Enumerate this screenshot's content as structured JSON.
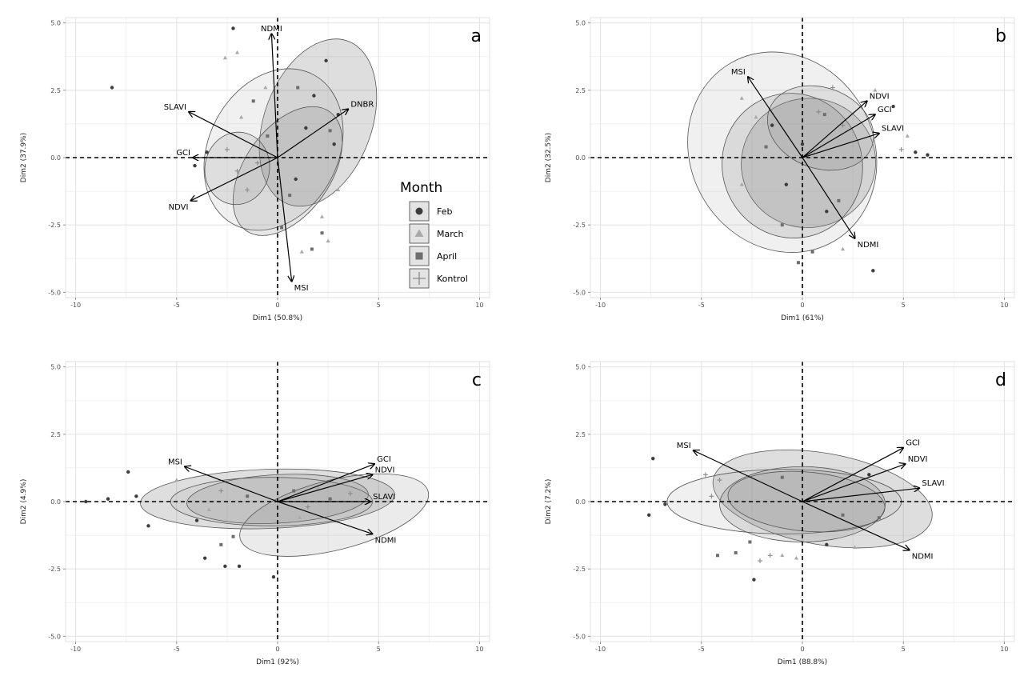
{
  "legend": {
    "title": "Month",
    "items": [
      {
        "label": "Feb",
        "shape": "circle",
        "color": "#3d3d3d"
      },
      {
        "label": "March",
        "shape": "triangle",
        "color": "#a9a9a9"
      },
      {
        "label": "April",
        "shape": "square",
        "color": "#6e6e6e"
      },
      {
        "label": "Kontrol",
        "shape": "plus",
        "color": "#8a8a8a"
      }
    ]
  },
  "chart_data": [
    {
      "type": "scatter",
      "panel": "a",
      "xlabel": "Dim1 (50.8%)",
      "ylabel": "Dim2 (37.9%)",
      "xlim": [
        -10.5,
        10.5
      ],
      "ylim": [
        -5.2,
        5.2
      ],
      "xticks": [
        -10,
        -5,
        0,
        5,
        10
      ],
      "yticks": [
        -5.0,
        -2.5,
        0.0,
        2.5,
        5.0
      ],
      "grid": true,
      "variables": [
        {
          "name": "NDMI",
          "x": -0.3,
          "y": 4.6
        },
        {
          "name": "DNBR",
          "x": 3.5,
          "y": 1.8
        },
        {
          "name": "SLAVI",
          "x": -4.4,
          "y": 1.7
        },
        {
          "name": "GCI",
          "x": -4.2,
          "y": 0.0
        },
        {
          "name": "NDVI",
          "x": -4.3,
          "y": -1.6
        },
        {
          "name": "MSI",
          "x": 0.7,
          "y": -4.6
        }
      ],
      "ellipses": [
        {
          "group": "Feb",
          "cx": 2.0,
          "cy": 1.3,
          "rx": 4.3,
          "ry": 2.0,
          "angle": 70
        },
        {
          "group": "March",
          "cx": -0.2,
          "cy": 0.3,
          "rx": 4.2,
          "ry": 2.4,
          "angle": 62
        },
        {
          "group": "April",
          "cx": 0.5,
          "cy": -0.5,
          "rx": 3.6,
          "ry": 1.6,
          "angle": 55
        },
        {
          "group": "Kontrol",
          "cx": -2.0,
          "cy": -0.4,
          "rx": 1.8,
          "ry": 1.2,
          "angle": 80
        }
      ],
      "points": [
        {
          "group": "Feb",
          "x": -8.2,
          "y": 2.6
        },
        {
          "group": "Feb",
          "x": -2.2,
          "y": 4.8
        },
        {
          "group": "Feb",
          "x": 1.8,
          "y": 2.3
        },
        {
          "group": "Feb",
          "x": 2.4,
          "y": 3.6
        },
        {
          "group": "Feb",
          "x": 3.0,
          "y": 1.6
        },
        {
          "group": "Feb",
          "x": 1.4,
          "y": 1.1
        },
        {
          "group": "Feb",
          "x": 2.8,
          "y": 0.5
        },
        {
          "group": "Feb",
          "x": -4.1,
          "y": -0.3
        },
        {
          "group": "Feb",
          "x": -3.5,
          "y": 0.2
        },
        {
          "group": "Feb",
          "x": 0.9,
          "y": -0.8
        },
        {
          "group": "March",
          "x": -2.6,
          "y": 3.7
        },
        {
          "group": "March",
          "x": -2.0,
          "y": 3.9
        },
        {
          "group": "March",
          "x": -1.8,
          "y": 1.5
        },
        {
          "group": "March",
          "x": -0.6,
          "y": 2.6
        },
        {
          "group": "March",
          "x": 2.2,
          "y": -2.2
        },
        {
          "group": "March",
          "x": 2.5,
          "y": -3.1
        },
        {
          "group": "March",
          "x": 1.2,
          "y": -3.5
        },
        {
          "group": "March",
          "x": 3.0,
          "y": -1.2
        },
        {
          "group": "April",
          "x": 0.2,
          "y": -2.6
        },
        {
          "group": "April",
          "x": 0.6,
          "y": -1.4
        },
        {
          "group": "April",
          "x": 1.7,
          "y": -3.4
        },
        {
          "group": "April",
          "x": 2.2,
          "y": -2.8
        },
        {
          "group": "April",
          "x": -0.5,
          "y": 0.8
        },
        {
          "group": "April",
          "x": -1.2,
          "y": 2.1
        },
        {
          "group": "April",
          "x": 1.0,
          "y": 2.6
        },
        {
          "group": "April",
          "x": 2.6,
          "y": 1.0
        },
        {
          "group": "Kontrol",
          "x": -2.0,
          "y": -0.5
        },
        {
          "group": "Kontrol",
          "x": -2.5,
          "y": 0.3
        },
        {
          "group": "Kontrol",
          "x": -1.5,
          "y": -1.2
        },
        {
          "group": "Kontrol",
          "x": -1.0,
          "y": -0.2
        }
      ]
    },
    {
      "type": "scatter",
      "panel": "b",
      "xlabel": "Dim1 (61%)",
      "ylabel": "Dim2 (32.5%)",
      "xlim": [
        -10.5,
        10.5
      ],
      "ylim": [
        -5.2,
        5.2
      ],
      "xticks": [
        -10,
        -5,
        0,
        5,
        10
      ],
      "yticks": [
        -5.0,
        -2.5,
        0.0,
        2.5,
        5.0
      ],
      "grid": true,
      "variables": [
        {
          "name": "MSI",
          "x": -2.7,
          "y": 3.0
        },
        {
          "name": "NDVI",
          "x": 3.2,
          "y": 2.1
        },
        {
          "name": "GCI",
          "x": 3.6,
          "y": 1.6
        },
        {
          "name": "SLAVI",
          "x": 3.8,
          "y": 0.9
        },
        {
          "name": "NDMI",
          "x": 2.6,
          "y": -3.0
        }
      ],
      "ellipses": [
        {
          "group": "Feb",
          "cx": 0.3,
          "cy": -0.2,
          "rx": 3.2,
          "ry": 2.5,
          "angle": 100
        },
        {
          "group": "March",
          "cx": -1.0,
          "cy": 0.2,
          "rx": 5.1,
          "ry": 3.4,
          "angle": 120
        },
        {
          "group": "April",
          "cx": -0.5,
          "cy": -0.3,
          "rx": 3.6,
          "ry": 2.6,
          "angle": 110
        },
        {
          "group": "Kontrol",
          "cx": 0.9,
          "cy": 1.1,
          "rx": 2.7,
          "ry": 1.5,
          "angle": 160
        }
      ],
      "points": [
        {
          "group": "Feb",
          "x": 4.5,
          "y": 1.9
        },
        {
          "group": "Feb",
          "x": 5.6,
          "y": 0.2
        },
        {
          "group": "Feb",
          "x": 6.2,
          "y": 0.1
        },
        {
          "group": "Feb",
          "x": 3.5,
          "y": -4.2
        },
        {
          "group": "Feb",
          "x": 0.0,
          "y": 0.5
        },
        {
          "group": "Feb",
          "x": -0.8,
          "y": -1.0
        },
        {
          "group": "Feb",
          "x": 1.2,
          "y": -2.0
        },
        {
          "group": "Feb",
          "x": -1.5,
          "y": 1.2
        },
        {
          "group": "March",
          "x": -3.0,
          "y": 2.2
        },
        {
          "group": "March",
          "x": -2.3,
          "y": 1.5
        },
        {
          "group": "March",
          "x": -3.0,
          "y": -1.0
        },
        {
          "group": "March",
          "x": 5.2,
          "y": 0.8
        },
        {
          "group": "March",
          "x": 3.6,
          "y": 2.5
        },
        {
          "group": "March",
          "x": 2.0,
          "y": -3.4
        },
        {
          "group": "April",
          "x": -1.0,
          "y": -2.5
        },
        {
          "group": "April",
          "x": 0.5,
          "y": -3.5
        },
        {
          "group": "April",
          "x": 1.8,
          "y": -1.6
        },
        {
          "group": "April",
          "x": -1.8,
          "y": 0.4
        },
        {
          "group": "April",
          "x": 1.1,
          "y": 1.6
        },
        {
          "group": "April",
          "x": -0.2,
          "y": -3.9
        },
        {
          "group": "Kontrol",
          "x": 1.5,
          "y": 2.6
        },
        {
          "group": "Kontrol",
          "x": 4.9,
          "y": 0.3
        },
        {
          "group": "Kontrol",
          "x": 2.0,
          "y": 1.2
        },
        {
          "group": "Kontrol",
          "x": 0.8,
          "y": 1.7
        }
      ]
    },
    {
      "type": "scatter",
      "panel": "c",
      "xlabel": "Dim1 (92%)",
      "ylabel": "Dim2 (4.9%)",
      "xlim": [
        -10.5,
        10.5
      ],
      "ylim": [
        -5.2,
        5.2
      ],
      "xticks": [
        -10,
        -5,
        0,
        5,
        10
      ],
      "yticks": [
        -5.0,
        -2.5,
        0.0,
        2.5,
        5.0
      ],
      "grid": true,
      "variables": [
        {
          "name": "MSI",
          "x": -4.6,
          "y": 1.3
        },
        {
          "name": "GCI",
          "x": 4.8,
          "y": 1.4
        },
        {
          "name": "NDVI",
          "x": 4.7,
          "y": 1.0
        },
        {
          "name": "SLAVI",
          "x": 4.6,
          "y": 0.0
        },
        {
          "name": "NDMI",
          "x": 4.7,
          "y": -1.2
        }
      ],
      "ellipses": [
        {
          "group": "Feb",
          "cx": -0.5,
          "cy": 0.1,
          "rx": 6.3,
          "ry": 1.1,
          "angle": 2
        },
        {
          "group": "March",
          "cx": -0.3,
          "cy": 0.0,
          "rx": 5.0,
          "ry": 0.9,
          "angle": 0
        },
        {
          "group": "April",
          "cx": 0.0,
          "cy": 0.1,
          "rx": 4.5,
          "ry": 0.9,
          "angle": 3
        },
        {
          "group": "Kontrol",
          "cx": 2.8,
          "cy": -0.5,
          "rx": 4.8,
          "ry": 1.3,
          "angle": 14
        }
      ],
      "points": [
        {
          "group": "Feb",
          "x": -9.5,
          "y": 0.0
        },
        {
          "group": "Feb",
          "x": -8.4,
          "y": 0.1
        },
        {
          "group": "Feb",
          "x": -7.4,
          "y": 1.1
        },
        {
          "group": "Feb",
          "x": -7.0,
          "y": 0.2
        },
        {
          "group": "Feb",
          "x": -6.4,
          "y": -0.9
        },
        {
          "group": "Feb",
          "x": -3.6,
          "y": -2.1
        },
        {
          "group": "Feb",
          "x": -2.6,
          "y": -2.4
        },
        {
          "group": "Feb",
          "x": -1.9,
          "y": -2.4
        },
        {
          "group": "Feb",
          "x": -0.2,
          "y": -2.8
        },
        {
          "group": "Feb",
          "x": -4.0,
          "y": -0.7
        },
        {
          "group": "March",
          "x": -5.0,
          "y": 0.8
        },
        {
          "group": "March",
          "x": -3.4,
          "y": -0.3
        },
        {
          "group": "March",
          "x": 2.0,
          "y": 0.5
        },
        {
          "group": "March",
          "x": 1.1,
          "y": -0.6
        },
        {
          "group": "April",
          "x": -2.8,
          "y": -1.6
        },
        {
          "group": "April",
          "x": -1.5,
          "y": 0.2
        },
        {
          "group": "April",
          "x": 0.8,
          "y": 0.4
        },
        {
          "group": "April",
          "x": 2.6,
          "y": 0.1
        },
        {
          "group": "April",
          "x": -2.2,
          "y": -1.3
        },
        {
          "group": "Kontrol",
          "x": -2.8,
          "y": 0.4
        },
        {
          "group": "Kontrol",
          "x": 3.6,
          "y": 0.3
        },
        {
          "group": "Kontrol",
          "x": 1.5,
          "y": -0.2
        }
      ]
    },
    {
      "type": "scatter",
      "panel": "d",
      "xlabel": "Dim1 (88.8%)",
      "ylabel": "Dim2 (7.2%)",
      "xlim": [
        -10.5,
        10.5
      ],
      "ylim": [
        -5.2,
        5.2
      ],
      "xticks": [
        -10,
        -5,
        0,
        5,
        10
      ],
      "yticks": [
        -5.0,
        -2.5,
        0.0,
        2.5,
        5.0
      ],
      "grid": true,
      "variables": [
        {
          "name": "MSI",
          "x": -5.4,
          "y": 1.9
        },
        {
          "name": "GCI",
          "x": 5.0,
          "y": 2.0
        },
        {
          "name": "NDVI",
          "x": 5.1,
          "y": 1.4
        },
        {
          "name": "SLAVI",
          "x": 5.8,
          "y": 0.5
        },
        {
          "name": "NDMI",
          "x": 5.3,
          "y": -1.8
        }
      ],
      "ellipses": [
        {
          "group": "Feb",
          "cx": 1.0,
          "cy": 0.1,
          "rx": 5.5,
          "ry": 1.7,
          "angle": -10
        },
        {
          "group": "March",
          "cx": -0.9,
          "cy": 0.0,
          "rx": 5.8,
          "ry": 1.2,
          "angle": 0
        },
        {
          "group": "April",
          "cx": 0.0,
          "cy": -0.1,
          "rx": 4.1,
          "ry": 1.4,
          "angle": 0
        },
        {
          "group": "Kontrol",
          "cx": 0.2,
          "cy": 0.0,
          "rx": 3.9,
          "ry": 1.1,
          "angle": -5
        }
      ],
      "points": [
        {
          "group": "Feb",
          "x": -7.4,
          "y": 1.6
        },
        {
          "group": "Feb",
          "x": -7.6,
          "y": -0.5
        },
        {
          "group": "Feb",
          "x": -6.8,
          "y": -0.1
        },
        {
          "group": "Feb",
          "x": -2.4,
          "y": -2.9
        },
        {
          "group": "Feb",
          "x": 3.3,
          "y": 1.0
        },
        {
          "group": "Feb",
          "x": 1.2,
          "y": -1.6
        },
        {
          "group": "April",
          "x": -4.2,
          "y": -2.0
        },
        {
          "group": "April",
          "x": -3.3,
          "y": -1.9
        },
        {
          "group": "April",
          "x": -2.6,
          "y": -1.5
        },
        {
          "group": "April",
          "x": 2.0,
          "y": -0.5
        },
        {
          "group": "April",
          "x": -1.0,
          "y": 0.9
        },
        {
          "group": "April",
          "x": 3.8,
          "y": -0.6
        },
        {
          "group": "March",
          "x": 2.6,
          "y": -1.7
        },
        {
          "group": "March",
          "x": -0.3,
          "y": -2.1
        },
        {
          "group": "March",
          "x": -1.0,
          "y": -2.0
        },
        {
          "group": "Kontrol",
          "x": -4.8,
          "y": 1.0
        },
        {
          "group": "Kontrol",
          "x": -4.1,
          "y": 0.8
        },
        {
          "group": "Kontrol",
          "x": -4.5,
          "y": 0.2
        },
        {
          "group": "Kontrol",
          "x": -2.1,
          "y": -2.2
        },
        {
          "group": "Kontrol",
          "x": -1.6,
          "y": -2.0
        }
      ]
    }
  ]
}
